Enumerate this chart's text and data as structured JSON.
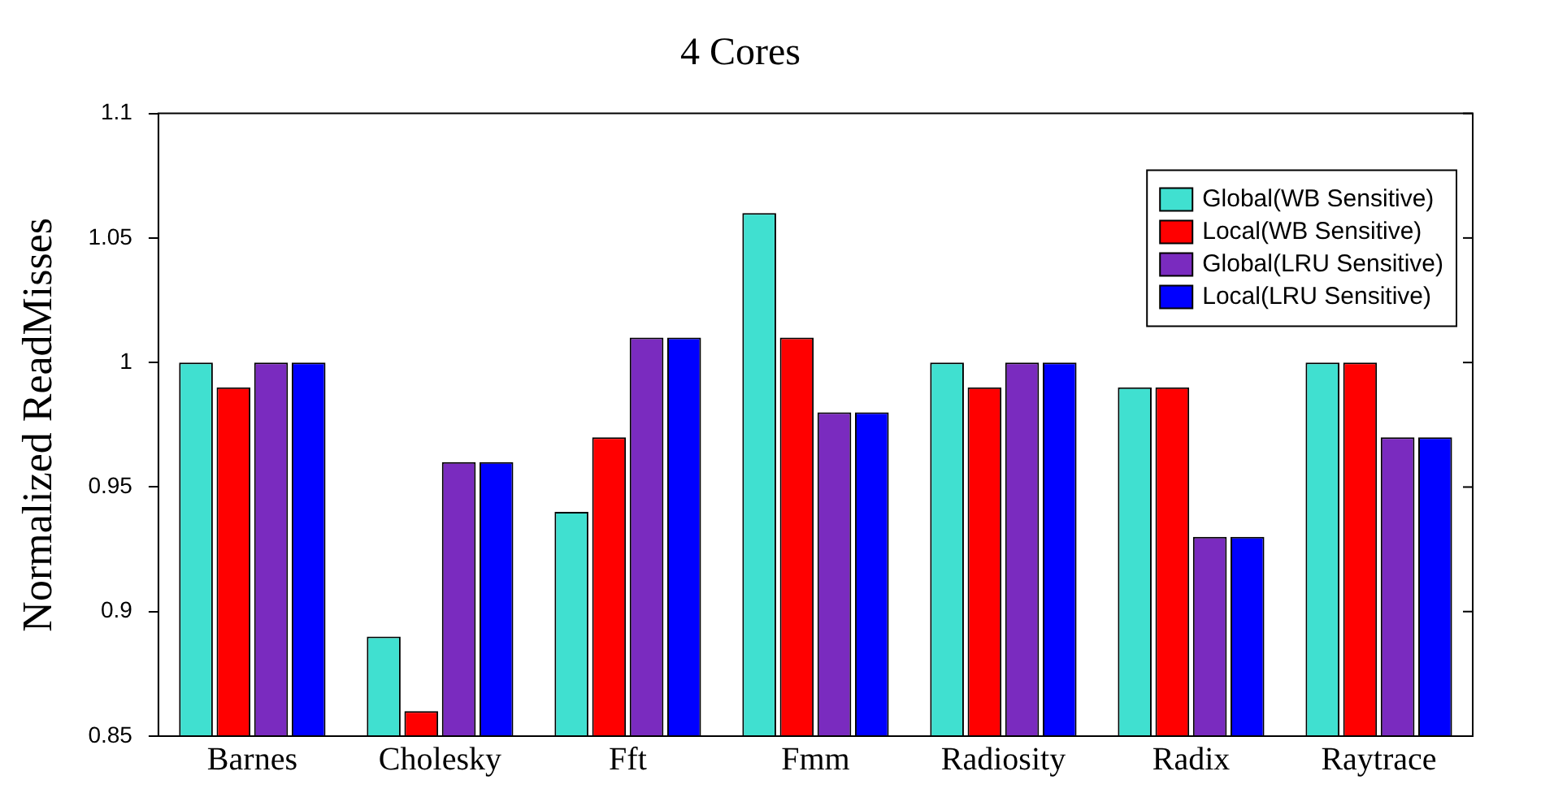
{
  "chart_data": {
    "type": "bar",
    "title": "4 Cores",
    "ylabel": "Normalized ReadMisses",
    "categories": [
      "Barnes",
      "Cholesky",
      "Fft",
      "Fmm",
      "Radiosity",
      "Radix",
      "Raytrace"
    ],
    "series": [
      {
        "name": "Global(WB Sensitive)",
        "color": "#40e0d0",
        "values": [
          1,
          0.89,
          0.94,
          1.06,
          1,
          0.99,
          1
        ]
      },
      {
        "name": "Local(WB Sensitive)",
        "color": "#ff0000",
        "values": [
          0.99,
          0.86,
          0.97,
          1.01,
          0.99,
          0.99,
          1
        ]
      },
      {
        "name": "Global(LRU Sensitive)",
        "color": "#7a2bbf",
        "values": [
          1,
          0.96,
          1.01,
          0.98,
          1,
          0.93,
          0.97
        ]
      },
      {
        "name": "Local(LRU Sensitive)",
        "color": "#0000ff",
        "values": [
          1,
          0.96,
          1.01,
          0.98,
          1,
          0.93,
          0.97
        ]
      }
    ],
    "ylim": [
      0.85,
      1.1
    ],
    "yticks": [
      0.85,
      0.9,
      0.95,
      1,
      1.05,
      1.1
    ],
    "grid": false,
    "legend": "top right"
  }
}
